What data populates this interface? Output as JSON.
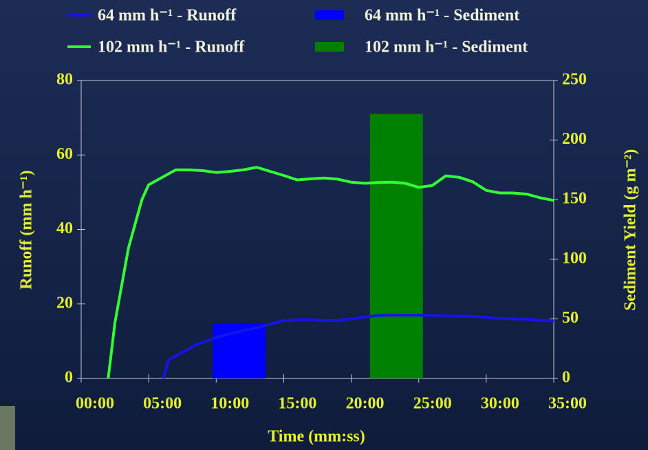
{
  "chart_data": {
    "type": "combo",
    "xlabel": "Time (mm:ss)",
    "ylabel": "Runoff (mm h⁻¹)",
    "y2label": "Sediment Yield (g m⁻²)",
    "xlim": [
      0,
      35
    ],
    "xticks": [
      {
        "value": 0,
        "label": "00:00"
      },
      {
        "value": 5,
        "label": "05:00"
      },
      {
        "value": 10,
        "label": "10:00"
      },
      {
        "value": 15,
        "label": "15:00"
      },
      {
        "value": 20,
        "label": "20:00"
      },
      {
        "value": 25,
        "label": "25:00"
      },
      {
        "value": 30,
        "label": "30:00"
      },
      {
        "value": 35,
        "label": "35:00"
      }
    ],
    "ylim": [
      0,
      80
    ],
    "yticks": [
      0,
      20,
      40,
      60,
      80
    ],
    "y2lim": [
      0,
      250
    ],
    "y2ticks": [
      0,
      50,
      100,
      150,
      200,
      250
    ],
    "series": [
      {
        "name": "64 mm h⁻¹ - Runoff",
        "type": "line",
        "color": "#1414e6",
        "x": [
          6.06,
          6.5,
          7.5,
          8.5,
          10,
          11,
          12,
          13,
          14,
          15,
          16,
          17,
          18,
          19,
          20,
          21,
          22,
          23,
          24,
          25,
          27,
          29,
          30,
          31,
          33,
          35
        ],
        "values": [
          0,
          5,
          7,
          9,
          11,
          12,
          12.8,
          13.6,
          14.6,
          15.5,
          15.8,
          15.8,
          15.5,
          15.6,
          16,
          16.5,
          16.9,
          17,
          17,
          17,
          16.8,
          16.7,
          16.4,
          16.1,
          15.9,
          15.4
        ]
      },
      {
        "name": "64 mm h⁻¹ - Sediment",
        "type": "bar",
        "axis": "y2",
        "color": "#0000ff",
        "x": [
          11.7
        ],
        "values": [
          46
        ]
      },
      {
        "name": "102 mm h⁻¹ - Runoff",
        "type": "line",
        "color": "#33ff33",
        "x": [
          2.0,
          2.5,
          3.0,
          3.5,
          4.5,
          5.0,
          6.0,
          7.0,
          8.0,
          9.0,
          10.0,
          11.0,
          12.0,
          13.0,
          14.0,
          15.0,
          16.0,
          17.0,
          18.0,
          19.0,
          20.0,
          21.0,
          22.0,
          23.0,
          24.0,
          25.0,
          26.0,
          27.0,
          28.0,
          29.0,
          30.0,
          31.0,
          32.0,
          33.0,
          34.0,
          35.0
        ],
        "values": [
          0,
          15,
          25,
          35,
          48,
          52,
          54,
          56,
          56,
          55.8,
          55.3,
          55.6,
          56,
          56.7,
          55.6,
          54.5,
          53.3,
          53.6,
          53.8,
          53.5,
          52.7,
          52.4,
          52.6,
          52.7,
          52.4,
          51.3,
          51.8,
          54.4,
          54,
          52.8,
          50.5,
          49.8,
          49.8,
          49.5,
          48.5,
          47.8
        ]
      },
      {
        "name": "102 mm h⁻¹ - Sediment",
        "type": "bar",
        "axis": "y2",
        "color": "#008000",
        "x": [
          23.35
        ],
        "values": [
          222
        ]
      }
    ]
  }
}
